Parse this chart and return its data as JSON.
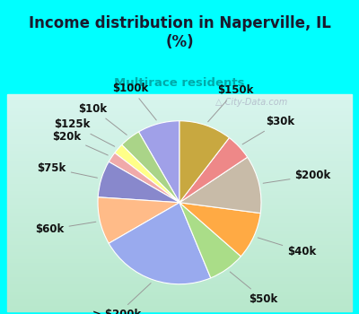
{
  "title": "Income distribution in Naperville, IL\n(%)",
  "subtitle": "Multirace residents",
  "title_color": "#1a1a2e",
  "subtitle_color": "#00aaaa",
  "bg_color": "#00ffff",
  "panel_color_top": "#d8f5ee",
  "panel_color_bottom": "#c8eedc",
  "watermark": "City-Data.com",
  "labels": [
    "$100k",
    "$10k",
    "$125k",
    "$20k",
    "$75k",
    "$60k",
    "> $200k",
    "$50k",
    "$40k",
    "$200k",
    "$30k",
    "$150k"
  ],
  "values": [
    8,
    4,
    2,
    2,
    7,
    9,
    22,
    7,
    9,
    11,
    5,
    10
  ],
  "colors": [
    "#a0a0e8",
    "#aad488",
    "#ffff88",
    "#f0aaaa",
    "#8888cc",
    "#ffbb88",
    "#99aaee",
    "#aadd88",
    "#ffaa44",
    "#c8bba8",
    "#ee8888",
    "#c8a840"
  ],
  "startangle": 90,
  "label_font_size": 8.5,
  "label_color": "#111111"
}
